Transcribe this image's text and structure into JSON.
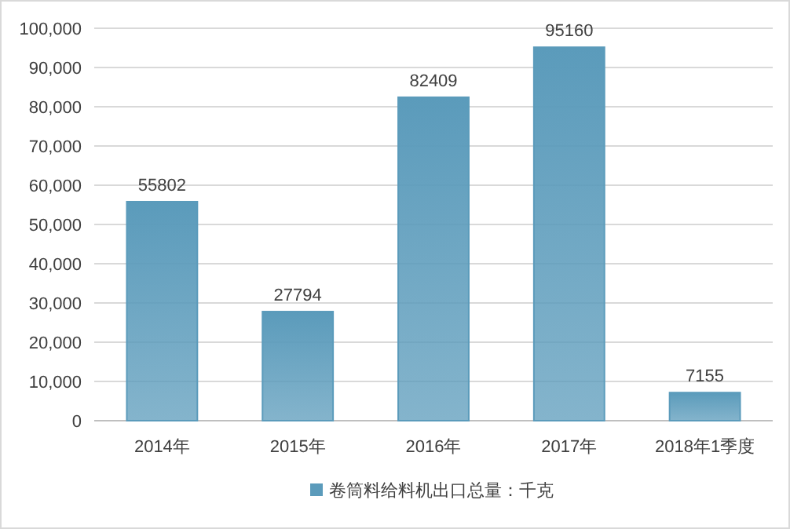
{
  "chart_data": {
    "type": "bar",
    "categories": [
      "2014年",
      "2015年",
      "2016年",
      "2017年",
      "2018年1季度"
    ],
    "series": [
      {
        "name": "卷筒料给料机出口总量：千克",
        "color": "#5b9bbb",
        "values": [
          55802,
          27794,
          82409,
          95160,
          7155
        ]
      }
    ],
    "ylim": [
      0,
      100000
    ],
    "yticks": [
      0,
      {
        "value": 10000,
        "label": "10,000"
      },
      {
        "value": 20000,
        "label": "20,000"
      },
      {
        "value": 30000,
        "label": "30,000"
      },
      {
        "value": 40000,
        "label": "40,000"
      },
      {
        "value": 50000,
        "label": "50,000"
      },
      {
        "value": 60000,
        "label": "60,000"
      },
      {
        "value": 70000,
        "label": "70,000"
      },
      {
        "value": 80000,
        "label": "80,000"
      },
      {
        "value": 90000,
        "label": "90,000"
      },
      {
        "value": 100000,
        "label": "100,000"
      }
    ],
    "grid": "y",
    "legend": "bottom",
    "data_labels": true
  }
}
